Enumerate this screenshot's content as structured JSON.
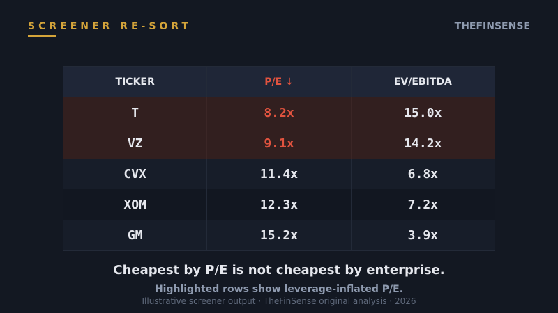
{
  "header": {
    "title": "SCREENER RE-SORT",
    "brand": "THEFINSENSE"
  },
  "table": {
    "columns": [
      {
        "label": "TICKER"
      },
      {
        "label": "P/E ↓"
      },
      {
        "label": "EV/EBITDA"
      }
    ],
    "rows": [
      {
        "ticker": "T",
        "pe": "8.2x",
        "ev_ebitda": "15.0x"
      },
      {
        "ticker": "VZ",
        "pe": "9.1x",
        "ev_ebitda": "14.2x"
      },
      {
        "ticker": "CVX",
        "pe": "11.4x",
        "ev_ebitda": "6.8x"
      },
      {
        "ticker": "XOM",
        "pe": "12.3x",
        "ev_ebitda": "7.2x"
      },
      {
        "ticker": "GM",
        "pe": "15.2x",
        "ev_ebitda": "3.9x"
      }
    ]
  },
  "footer": {
    "takeaway": "Cheapest by P/E is not cheapest by enterprise.",
    "subtitle": "Highlighted rows show leverage-inflated P/E.",
    "caption": "Illustrative screener output · TheFinSense original analysis · 2026"
  },
  "colors": {
    "accent": "#d4a43a",
    "highlight_text": "#e0533f",
    "highlight_row_bg": "#321f1f",
    "background": "#131822"
  }
}
